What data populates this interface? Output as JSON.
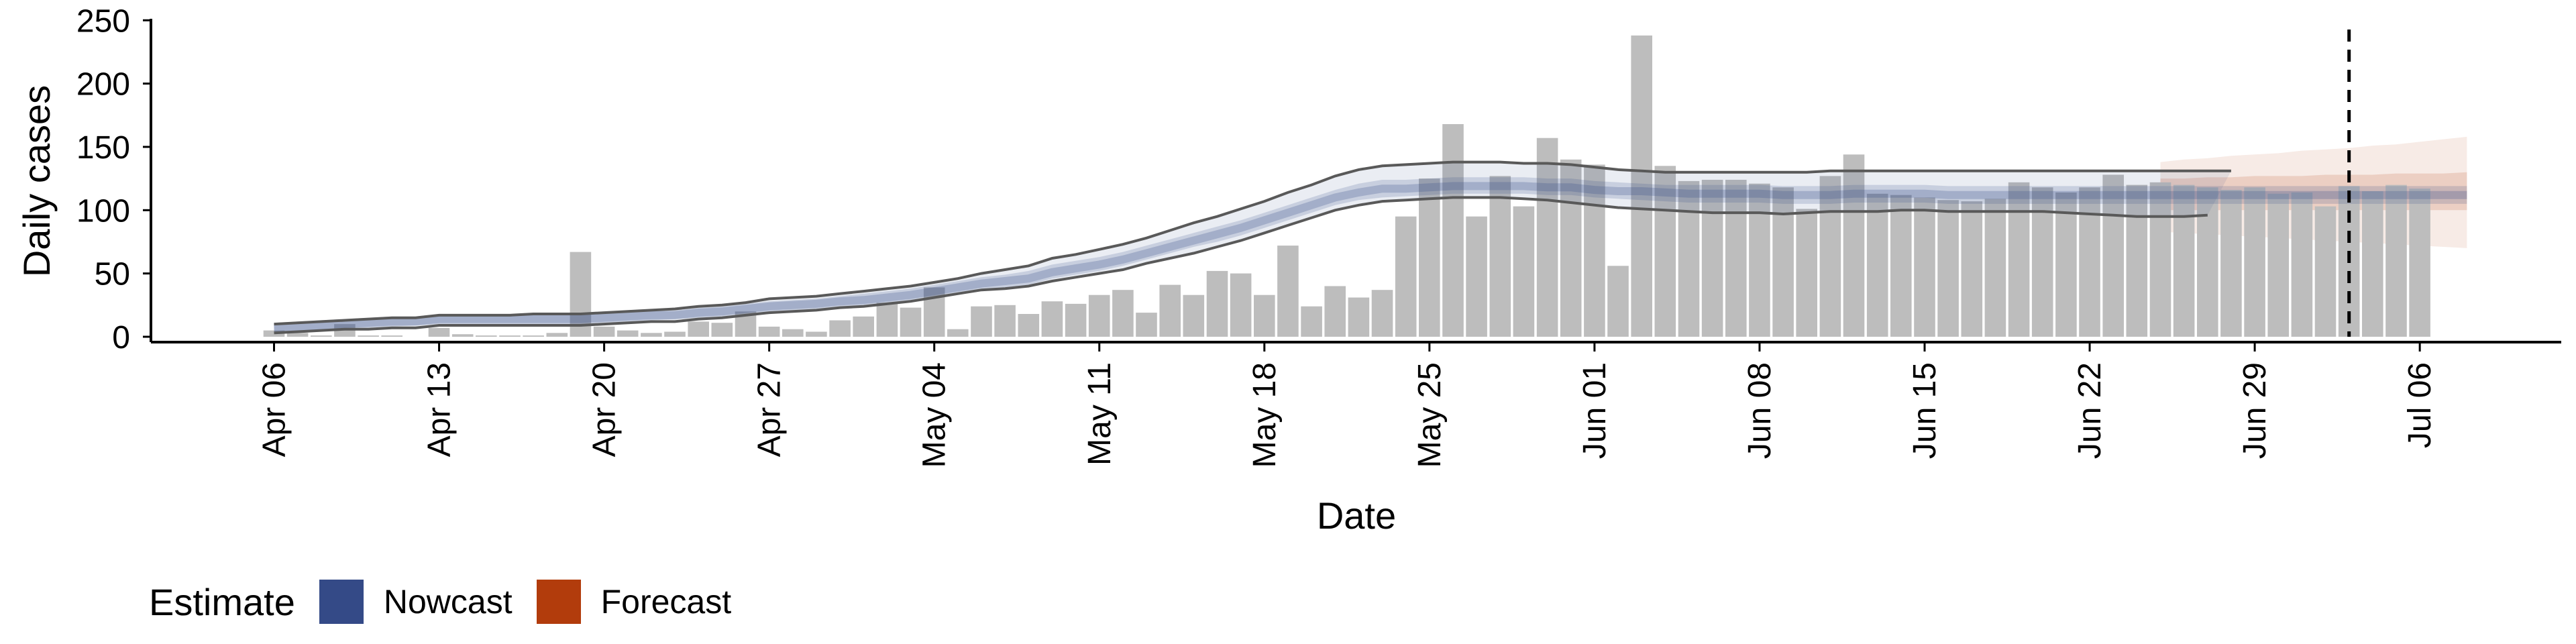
{
  "chart_data": {
    "type": "bar",
    "title": "",
    "xlabel": "Date",
    "ylabel": "Daily cases",
    "ylim": [
      0,
      250
    ],
    "yticks": [
      0,
      50,
      100,
      150,
      200,
      250
    ],
    "xticks": [
      "Apr 06",
      "Apr 13",
      "Apr 20",
      "Apr 27",
      "May 04",
      "May 11",
      "May 18",
      "May 25",
      "Jun 01",
      "Jun 08",
      "Jun 15",
      "Jun 22",
      "Jun 29",
      "Jul 06"
    ],
    "tick_day_offsets": [
      0,
      7,
      14,
      21,
      28,
      35,
      42,
      49,
      56,
      63,
      70,
      77,
      84,
      91
    ],
    "dates": [
      "2020-04-06",
      "2020-04-07",
      "2020-04-08",
      "2020-04-09",
      "2020-04-10",
      "2020-04-11",
      "2020-04-12",
      "2020-04-13",
      "2020-04-14",
      "2020-04-15",
      "2020-04-16",
      "2020-04-17",
      "2020-04-18",
      "2020-04-19",
      "2020-04-20",
      "2020-04-21",
      "2020-04-22",
      "2020-04-23",
      "2020-04-24",
      "2020-04-25",
      "2020-04-26",
      "2020-04-27",
      "2020-04-28",
      "2020-04-29",
      "2020-04-30",
      "2020-05-01",
      "2020-05-02",
      "2020-05-03",
      "2020-05-04",
      "2020-05-05",
      "2020-05-06",
      "2020-05-07",
      "2020-05-08",
      "2020-05-09",
      "2020-05-10",
      "2020-05-11",
      "2020-05-12",
      "2020-05-13",
      "2020-05-14",
      "2020-05-15",
      "2020-05-16",
      "2020-05-17",
      "2020-05-18",
      "2020-05-19",
      "2020-05-20",
      "2020-05-21",
      "2020-05-22",
      "2020-05-23",
      "2020-05-24",
      "2020-05-25",
      "2020-05-26",
      "2020-05-27",
      "2020-05-28",
      "2020-05-29",
      "2020-05-30",
      "2020-05-31",
      "2020-06-01",
      "2020-06-02",
      "2020-06-03",
      "2020-06-04",
      "2020-06-05",
      "2020-06-06",
      "2020-06-07",
      "2020-06-08",
      "2020-06-09",
      "2020-06-10",
      "2020-06-11",
      "2020-06-12",
      "2020-06-13",
      "2020-06-14",
      "2020-06-15",
      "2020-06-16",
      "2020-06-17",
      "2020-06-18",
      "2020-06-19",
      "2020-06-20",
      "2020-06-21",
      "2020-06-22",
      "2020-06-23",
      "2020-06-24",
      "2020-06-25",
      "2020-06-26",
      "2020-06-27",
      "2020-06-28",
      "2020-06-29",
      "2020-06-30",
      "2020-07-01",
      "2020-07-02",
      "2020-07-03",
      "2020-07-04",
      "2020-07-05",
      "2020-07-06",
      "2020-07-07",
      "2020-07-08"
    ],
    "reported_cases": [
      5,
      3,
      1,
      10,
      1,
      1,
      0,
      7,
      2,
      1,
      1,
      1,
      3,
      67,
      8,
      5,
      3,
      4,
      12,
      11,
      20,
      8,
      6,
      4,
      13,
      16,
      27,
      23,
      39,
      6,
      24,
      25,
      18,
      28,
      26,
      33,
      37,
      19,
      41,
      33,
      52,
      50,
      33,
      72,
      24,
      40,
      31,
      37,
      95,
      125,
      168,
      95,
      127,
      103,
      157,
      140,
      136,
      56,
      238,
      135,
      123,
      124,
      124,
      121,
      118,
      101,
      127,
      144,
      113,
      112,
      110,
      108,
      107,
      109,
      122,
      118,
      114,
      118,
      128,
      120,
      122,
      120,
      118,
      116,
      118,
      113,
      114,
      103,
      119,
      115,
      120,
      117
    ],
    "nowcast": {
      "name": "Nowcast",
      "median": [
        7,
        8,
        9,
        10,
        11,
        12,
        12,
        14,
        14,
        14,
        14,
        14,
        14,
        14,
        15,
        16,
        17,
        17,
        19,
        20,
        22,
        24,
        25,
        26,
        28,
        29,
        31,
        33,
        36,
        39,
        42,
        44,
        46,
        51,
        54,
        57,
        61,
        66,
        71,
        76,
        81,
        86,
        92,
        98,
        104,
        110,
        114,
        117,
        117,
        118,
        119,
        119,
        119,
        119,
        118,
        118,
        116,
        115,
        115,
        114,
        113,
        113,
        113,
        113,
        112,
        112,
        112,
        113,
        113,
        113,
        113,
        112,
        112,
        112,
        112,
        112,
        112,
        112,
        112,
        112,
        112,
        112,
        112,
        112,
        112,
        112,
        112,
        112,
        112,
        112,
        112,
        112,
        112,
        112
      ],
      "inner_lower": [
        3,
        4,
        5,
        6,
        7,
        8,
        9,
        10,
        10,
        10,
        10,
        10,
        10,
        10,
        11,
        12,
        13,
        14,
        15,
        16,
        17,
        19,
        20,
        21,
        23,
        24,
        26,
        28,
        31,
        34,
        37,
        39,
        41,
        46,
        49,
        52,
        56,
        61,
        66,
        71,
        75,
        80,
        86,
        92,
        98,
        104,
        108,
        110,
        111,
        112,
        113,
        113,
        113,
        113,
        112,
        112,
        110,
        109,
        108,
        107,
        106,
        106,
        106,
        106,
        105,
        105,
        105,
        106,
        106,
        106,
        106,
        105,
        105,
        105,
        105,
        105,
        105,
        105,
        105,
        105,
        105,
        105,
        105,
        105,
        105,
        105,
        105,
        105,
        105,
        105,
        105,
        105,
        105,
        105
      ],
      "inner_upper": [
        11,
        12,
        13,
        14,
        15,
        16,
        16,
        18,
        18,
        18,
        18,
        18,
        18,
        18,
        19,
        20,
        21,
        21,
        23,
        24,
        26,
        28,
        29,
        30,
        32,
        34,
        36,
        38,
        41,
        44,
        47,
        49,
        52,
        57,
        60,
        63,
        67,
        72,
        77,
        82,
        87,
        92,
        98,
        104,
        110,
        116,
        121,
        124,
        124,
        125,
        126,
        126,
        126,
        126,
        125,
        125,
        123,
        122,
        121,
        120,
        120,
        120,
        120,
        120,
        119,
        119,
        119,
        120,
        120,
        120,
        120,
        119,
        119,
        119,
        119,
        119,
        119,
        119,
        119,
        119,
        119,
        119,
        119,
        119,
        119,
        119,
        119,
        119,
        119,
        119,
        119,
        119,
        119,
        119
      ],
      "outer_lower": [
        5,
        6,
        7,
        8,
        9,
        10,
        10,
        11,
        11,
        11,
        11,
        11,
        11,
        11,
        12,
        13,
        14,
        14,
        16,
        17,
        19,
        21,
        22,
        23,
        25,
        26,
        28,
        30,
        33,
        36,
        39,
        41,
        43,
        48,
        51,
        54,
        58,
        63,
        68,
        73,
        78,
        83,
        89,
        95,
        101,
        107,
        111,
        114,
        114,
        115,
        116,
        116,
        116,
        116,
        115,
        115,
        113,
        112,
        111,
        110,
        109,
        109,
        109,
        109,
        108,
        108,
        108,
        109,
        109,
        109,
        109,
        108,
        108,
        108,
        108,
        108,
        108,
        108,
        108,
        108,
        108,
        108,
        108,
        108,
        108,
        108,
        108,
        108,
        108,
        108,
        108,
        108,
        108,
        108
      ],
      "outer_upper": [
        10,
        11,
        12,
        13,
        14,
        15,
        15,
        17,
        17,
        17,
        17,
        17,
        17,
        17,
        18,
        19,
        20,
        21,
        23,
        24,
        26,
        28,
        29,
        30,
        32,
        34,
        36,
        38,
        41,
        44,
        47,
        49,
        52,
        57,
        60,
        63,
        67,
        72,
        77,
        82,
        87,
        92,
        98,
        104,
        110,
        116,
        121,
        124,
        124,
        125,
        126,
        126,
        126,
        126,
        125,
        125,
        123,
        122,
        121,
        120,
        120,
        120,
        120,
        120,
        119,
        119,
        119,
        120,
        120,
        120,
        120,
        119,
        119,
        119,
        119,
        119,
        119,
        119,
        119,
        119,
        119,
        119,
        119,
        119,
        119,
        119,
        119,
        119,
        119,
        119,
        119,
        119,
        119,
        119
      ],
      "lower_line": [
        3,
        4,
        5,
        6,
        6,
        7,
        7,
        9,
        9,
        9,
        9,
        9,
        9,
        9,
        10,
        11,
        12,
        12,
        14,
        15,
        17,
        19,
        20,
        21,
        23,
        24,
        26,
        28,
        31,
        34,
        37,
        38,
        40,
        44,
        47,
        50,
        53,
        58,
        62,
        66,
        71,
        76,
        82,
        88,
        94,
        100,
        104,
        107,
        108,
        109,
        110,
        110,
        110,
        109,
        108,
        106,
        104,
        102,
        101,
        100,
        99,
        98,
        98,
        98,
        97,
        98,
        99,
        99,
        99,
        100,
        100,
        99,
        99,
        99,
        99,
        99,
        98,
        97,
        96,
        95,
        95,
        95,
        96
      ],
      "upper_line": [
        10,
        11,
        12,
        13,
        14,
        15,
        15,
        17,
        17,
        17,
        17,
        18,
        18,
        18,
        19,
        20,
        21,
        22,
        24,
        25,
        27,
        30,
        31,
        32,
        34,
        36,
        38,
        40,
        43,
        46,
        50,
        53,
        56,
        62,
        65,
        69,
        73,
        78,
        84,
        90,
        95,
        101,
        107,
        114,
        120,
        127,
        132,
        135,
        136,
        137,
        138,
        138,
        138,
        137,
        137,
        136,
        134,
        132,
        131,
        130,
        130,
        130,
        130,
        130,
        130,
        130,
        131,
        131,
        131,
        131,
        131,
        131,
        131,
        131,
        131,
        131,
        131,
        131,
        131,
        131,
        131,
        131,
        131,
        131
      ]
    },
    "forecast": {
      "name": "Forecast",
      "start_day": 80,
      "median": [
        113,
        113,
        113,
        114,
        114,
        114,
        115,
        115,
        115,
        115,
        115,
        116,
        116,
        116
      ],
      "inner_lower": [
        100,
        100,
        100,
        100,
        100,
        100,
        100,
        100,
        100,
        100,
        100,
        100,
        100,
        100
      ],
      "inner_upper": [
        125,
        125,
        126,
        126,
        127,
        127,
        127,
        128,
        128,
        128,
        129,
        129,
        129,
        130
      ],
      "outer_lower": [
        83,
        82,
        81,
        80,
        79,
        78,
        77,
        76,
        75,
        74,
        73,
        72,
        71,
        70
      ],
      "outer_upper": [
        138,
        140,
        141,
        143,
        144,
        145,
        147,
        148,
        149,
        151,
        152,
        154,
        156,
        158
      ]
    },
    "vline_date": "Jul 03",
    "vline_day_offset": 88,
    "legend": {
      "title": "Estimate",
      "entries": [
        {
          "label": "Nowcast",
          "color": "#344a87"
        },
        {
          "label": "Forecast",
          "color": "#b23c0c"
        }
      ],
      "position": "bottom-left"
    },
    "colors": {
      "bars": "#bdbdbd",
      "nowcast": "#344a87",
      "forecast": "#b23c0c",
      "band_lines": "#595959"
    },
    "grid": false
  }
}
